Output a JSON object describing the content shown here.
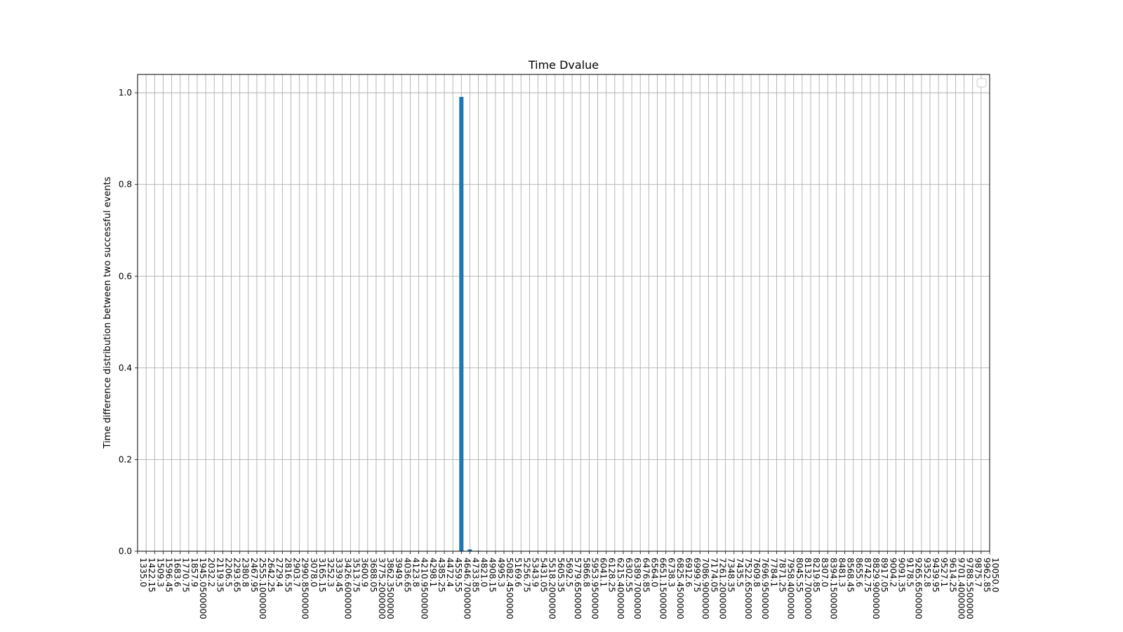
{
  "chart_data": {
    "type": "bar",
    "title": "Time Dvalue",
    "xlabel": "",
    "ylabel": "Time difference distribution between two successful events",
    "ylim": [
      0,
      1.04
    ],
    "yticks": [
      "0.0",
      "0.2",
      "0.4",
      "0.6",
      "0.8",
      "1.0"
    ],
    "ytick_values": [
      0,
      0.2,
      0.4,
      0.6,
      0.8,
      1.0
    ],
    "grid": true,
    "legend": "top-right (empty)",
    "bar_color": "#1f77b4",
    "categories": [
      "1335.0",
      "1422.15",
      "1509.3",
      "1596.45",
      "1683.6",
      "1770.75",
      "1857.9",
      "1945.0500000",
      "2032.2",
      "2119.35",
      "2206.5",
      "2293.65",
      "2380.8",
      "2467.95",
      "2555.1000000",
      "2642.25",
      "2729.4",
      "2816.55",
      "2903.7",
      "2990.8500000",
      "3078.0",
      "3165.15",
      "3252.3",
      "3339.45",
      "3426.6000000",
      "3513.75",
      "3600.9",
      "3688.05",
      "3775.2000000",
      "3862.3500000",
      "3949.5",
      "4036.65",
      "4123.8",
      "4210.9500000",
      "4298.1",
      "4385.25",
      "4472.4",
      "4559.55",
      "4646.7000000",
      "4733.85",
      "4821.0",
      "4908.15",
      "4995.3",
      "5082.4500000",
      "5169.6",
      "5256.75",
      "5343.9",
      "5431.05",
      "5518.2000000",
      "5605.35",
      "5692.5",
      "5779.6500000",
      "5866.8",
      "5953.9500000",
      "6041.1",
      "6128.25",
      "6215.4000000",
      "6302.55",
      "6389.7000000",
      "6476.85",
      "6564.0",
      "6651.1500000",
      "6738.3",
      "6825.4500000",
      "6912.6",
      "6999.75",
      "7086.9000000",
      "7174.05",
      "7261.2000000",
      "7348.35",
      "7435.5",
      "7522.6500000",
      "7609.8",
      "7696.9500000",
      "7784.1",
      "7871.25",
      "7958.4000000",
      "8045.55",
      "8132.7000000",
      "8219.85",
      "8307.0",
      "8394.1500000",
      "8481.3",
      "8568.45",
      "8655.6",
      "8742.75",
      "8829.9000000",
      "8917.05",
      "9004.2",
      "9091.35",
      "9178.5",
      "9265.6500000",
      "9352.8",
      "9439.95",
      "9527.1",
      "9614.25",
      "9701.4000000",
      "9788.5500000",
      "9875.7",
      "9962.85",
      "10050.0"
    ],
    "values": [
      0,
      0,
      0,
      0,
      0,
      0,
      0,
      0,
      0,
      0,
      0,
      0,
      0,
      0,
      0,
      0,
      0,
      0,
      0,
      0,
      0,
      0,
      0,
      0,
      0,
      0,
      0,
      0,
      0,
      0,
      0,
      0,
      0,
      0,
      0,
      0,
      0,
      0,
      0.991,
      0.004,
      0.001,
      0,
      0,
      0,
      0,
      0,
      0,
      0,
      0,
      0,
      0,
      0,
      0,
      0,
      0,
      0,
      0,
      0,
      0,
      0,
      0,
      0,
      0,
      0,
      0,
      0,
      0,
      0,
      0,
      0,
      0,
      0,
      0,
      0,
      0,
      0,
      0,
      0,
      0,
      0,
      0,
      0,
      0,
      0,
      0,
      0,
      0,
      0,
      0,
      0,
      0,
      0,
      0,
      0,
      0,
      0,
      0,
      0,
      0,
      0,
      0
    ]
  }
}
